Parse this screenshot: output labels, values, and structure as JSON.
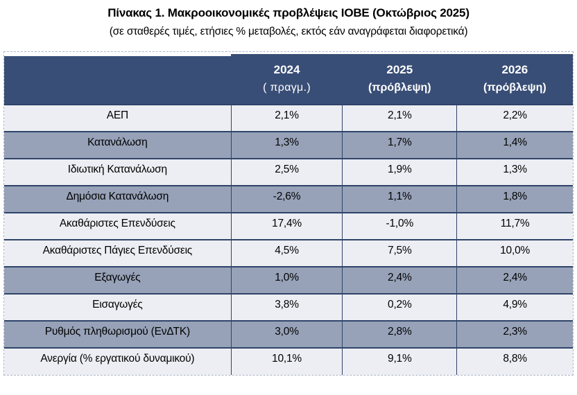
{
  "title": "Πίνακας 1. Μακροοικονομικές προβλέψεις ΙΟΒΕ (Οκτώβριος 2025)",
  "subtitle": "(σε σταθερές τιμές, ετήσιες % μεταβολές, εκτός εάν αναγράφεται διαφορετικά)",
  "table": {
    "columns": [
      {
        "year": "",
        "qualifier": ""
      },
      {
        "year": "2024",
        "qualifier": "( πραγμ.)",
        "qualifier_bold": false
      },
      {
        "year": "2025",
        "qualifier": "(πρόβλεψη)",
        "qualifier_bold": true
      },
      {
        "year": "2026",
        "qualifier": "(πρόβλεψη)",
        "qualifier_bold": true
      }
    ],
    "rows": [
      {
        "label": "ΑΕΠ",
        "values": [
          "2,1%",
          "2,1%",
          "2,2%"
        ],
        "shade": "light"
      },
      {
        "label": "Κατανάλωση",
        "values": [
          "1,3%",
          "1,7%",
          "1,4%"
        ],
        "shade": "dark"
      },
      {
        "label": "Ιδιωτική Κατανάλωση",
        "values": [
          "2,5%",
          "1,9%",
          "1,3%"
        ],
        "shade": "light"
      },
      {
        "label": "Δημόσια Κατανάλωση",
        "values": [
          "-2,6%",
          "1,1%",
          "1,8%"
        ],
        "shade": "dark"
      },
      {
        "label": "Ακαθάριστες Επενδύσεις",
        "values": [
          "17,4%",
          "-1,0%",
          "11,7%"
        ],
        "shade": "light"
      },
      {
        "label": "Ακαθάριστες Πάγιες Επενδύσεις",
        "values": [
          "4,5%",
          "7,5%",
          "10,0%"
        ],
        "shade": "light"
      },
      {
        "label": "Εξαγωγές",
        "values": [
          "1,0%",
          "2,4%",
          "2,4%"
        ],
        "shade": "dark"
      },
      {
        "label": "Εισαγωγές",
        "values": [
          "3,8%",
          "0,2%",
          "4,9%"
        ],
        "shade": "light"
      },
      {
        "label": "Ρυθμός πληθωρισμού (ΕνΔΤΚ)",
        "values": [
          "3,0%",
          "2,8%",
          "2,3%"
        ],
        "shade": "dark"
      },
      {
        "label": "Ανεργία (% εργατικού δυναμικού)",
        "values": [
          "10,1%",
          "9,1%",
          "8,8%"
        ],
        "shade": "light"
      }
    ]
  },
  "colors": {
    "header_bg": "#394e76",
    "header_text": "#ffffff",
    "row_light_bg": "#edeef3",
    "row_dark_bg": "#97a2b8",
    "row_border": "#2e4369",
    "outer_dashed_border": "#aab6ca",
    "body_text": "#000000"
  },
  "chart_data": {
    "type": "table",
    "title": "Πίνακας 1. Μακροοικονομικές προβλέψεις ΙΟΒΕ (Οκτώβριος 2025)",
    "subtitle": "(σε σταθερές τιμές, ετήσιες % μεταβολές, εκτός εάν αναγράφεται διαφορετικά)",
    "columns": [
      "",
      "2024 (πραγμ.)",
      "2025 (πρόβλεψη)",
      "2026 (πρόβλεψη)"
    ],
    "rows": [
      {
        "label": "ΑΕΠ",
        "values_pct": [
          2.1,
          2.1,
          2.2
        ]
      },
      {
        "label": "Κατανάλωση",
        "values_pct": [
          1.3,
          1.7,
          1.4
        ]
      },
      {
        "label": "Ιδιωτική Κατανάλωση",
        "values_pct": [
          2.5,
          1.9,
          1.3
        ]
      },
      {
        "label": "Δημόσια Κατανάλωση",
        "values_pct": [
          -2.6,
          1.1,
          1.8
        ]
      },
      {
        "label": "Ακαθάριστες Επενδύσεις",
        "values_pct": [
          17.4,
          -1.0,
          11.7
        ]
      },
      {
        "label": "Ακαθάριστες Πάγιες Επενδύσεις",
        "values_pct": [
          4.5,
          7.5,
          10.0
        ]
      },
      {
        "label": "Εξαγωγές",
        "values_pct": [
          1.0,
          2.4,
          2.4
        ]
      },
      {
        "label": "Εισαγωγές",
        "values_pct": [
          3.8,
          0.2,
          4.9
        ]
      },
      {
        "label": "Ρυθμός πληθωρισμού (ΕνΔΤΚ)",
        "values_pct": [
          3.0,
          2.8,
          2.3
        ]
      },
      {
        "label": "Ανεργία (% εργατικού δυναμικού)",
        "values_pct": [
          10.1,
          9.1,
          8.8
        ]
      }
    ]
  }
}
